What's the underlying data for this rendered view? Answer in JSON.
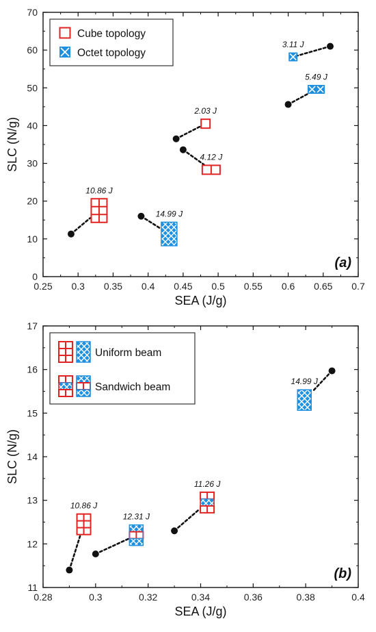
{
  "colors": {
    "cube": "#e32222",
    "octet": "#1e90e0",
    "point": "#111111",
    "axis": "#111111"
  },
  "chart_data": [
    {
      "type": "scatter",
      "panel_label": "(a)",
      "xlabel": "SEA (J/g)",
      "ylabel": "SLC (N/g)",
      "xlim": [
        0.25,
        0.7
      ],
      "ylim": [
        0,
        70
      ],
      "xticks": [
        0.25,
        0.3,
        0.35,
        0.4,
        0.45,
        0.5,
        0.55,
        0.6,
        0.65,
        0.7
      ],
      "xtick_labels": [
        "0.25",
        "0.3",
        "0.35",
        "0.4",
        "0.45",
        "0.5",
        "0.55",
        "0.6",
        "0.65",
        "0.7"
      ],
      "yticks": [
        0,
        10,
        20,
        30,
        40,
        50,
        60,
        70
      ],
      "ytick_labels": [
        "0",
        "10",
        "20",
        "30",
        "40",
        "50",
        "60",
        "70"
      ],
      "legend_position": "top-left",
      "legend": [
        {
          "label": "Cube topology",
          "icons": [
            "cube-outline"
          ]
        },
        {
          "label": "Octet topology",
          "icons": [
            "octet-cross"
          ]
        }
      ],
      "points": [
        {
          "x": 0.29,
          "y": 11.3,
          "energy": "10.86 J",
          "icon": "cube-grid",
          "icon_at": [
            0.33,
            17.5
          ],
          "cells": [
            2,
            3
          ]
        },
        {
          "x": 0.39,
          "y": 16.0,
          "energy": "14.99 J",
          "icon": "octet-lattice",
          "icon_at": [
            0.43,
            11.3
          ],
          "cells": [
            2,
            3
          ]
        },
        {
          "x": 0.44,
          "y": 36.5,
          "energy": "2.03 J",
          "icon": "cube-single",
          "icon_at": [
            0.482,
            40.5
          ],
          "cells": [
            1,
            1
          ]
        },
        {
          "x": 0.45,
          "y": 33.6,
          "energy": "4.12 J",
          "icon": "cube-row",
          "icon_at": [
            0.49,
            28.3
          ],
          "cells": [
            2,
            1
          ]
        },
        {
          "x": 0.66,
          "y": 61.0,
          "energy": "3.11 J",
          "icon": "octet-single",
          "icon_at": [
            0.607,
            58.2
          ],
          "cells": [
            1,
            1
          ]
        },
        {
          "x": 0.6,
          "y": 45.6,
          "energy": "5.49 J",
          "icon": "octet-row",
          "icon_at": [
            0.64,
            49.6
          ],
          "cells": [
            2,
            1
          ]
        }
      ]
    },
    {
      "type": "scatter",
      "panel_label": "(b)",
      "xlabel": "SEA (J/g)",
      "ylabel": "SLC (N/g)",
      "xlim": [
        0.28,
        0.4
      ],
      "ylim": [
        11,
        17
      ],
      "xticks": [
        0.28,
        0.3,
        0.32,
        0.34,
        0.36,
        0.38,
        0.4
      ],
      "xtick_labels": [
        "0.28",
        "0.3",
        "0.32",
        "0.34",
        "0.36",
        "0.38",
        "0.4"
      ],
      "yticks": [
        11,
        12,
        13,
        14,
        15,
        16,
        17
      ],
      "ytick_labels": [
        "11",
        "12",
        "13",
        "14",
        "15",
        "16",
        "17"
      ],
      "legend_position": "top-left",
      "legend": [
        {
          "label": "Uniform beam",
          "icons": [
            "cube-grid",
            "octet-lattice"
          ]
        },
        {
          "label": "Sandwich beam",
          "icons": [
            "cube-sandwich",
            "octet-sandwich"
          ]
        }
      ],
      "points": [
        {
          "x": 0.29,
          "y": 11.4,
          "energy": "10.86 J",
          "icon": "cube-grid",
          "icon_at": [
            0.2955,
            12.45
          ],
          "cells": [
            2,
            3
          ]
        },
        {
          "x": 0.3,
          "y": 11.77,
          "energy": "12.31 J",
          "icon": "mixed-octet-outer",
          "icon_at": [
            0.3155,
            12.2
          ],
          "cells": [
            2,
            3
          ]
        },
        {
          "x": 0.33,
          "y": 12.3,
          "energy": "11.26 J",
          "icon": "mixed-cube-outer",
          "icon_at": [
            0.3425,
            12.95
          ],
          "cells": [
            2,
            3
          ]
        },
        {
          "x": 0.39,
          "y": 15.97,
          "energy": "14.99 J",
          "icon": "octet-lattice",
          "icon_at": [
            0.3795,
            15.3
          ],
          "cells": [
            2,
            3
          ]
        }
      ]
    }
  ]
}
